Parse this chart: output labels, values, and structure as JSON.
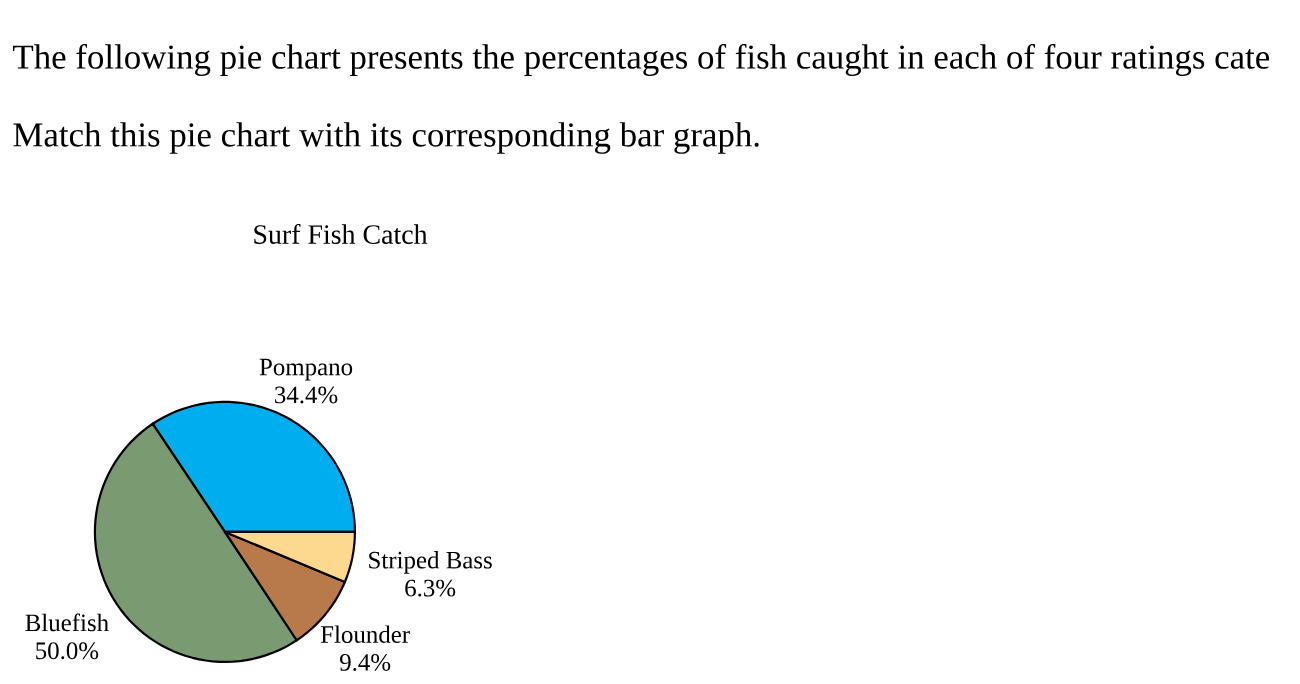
{
  "chart_data": {
    "type": "pie",
    "title": "Surf Fish Catch",
    "categories": [
      "Pompano",
      "Bluefish",
      "Flounder",
      "Striped Bass"
    ],
    "values": [
      34.4,
      50.0,
      9.4,
      6.3
    ],
    "value_labels": [
      "34.4%",
      "50.0%",
      "9.4%",
      "6.3%"
    ],
    "colors": [
      "#00aeef",
      "#7a9a72",
      "#b87a4b",
      "#fcd98f"
    ],
    "annotations": [
      "The following pie chart presents the percentages of fish caught in each of four ratings cate",
      "Match this pie chart with its corresponding bar graph."
    ]
  }
}
